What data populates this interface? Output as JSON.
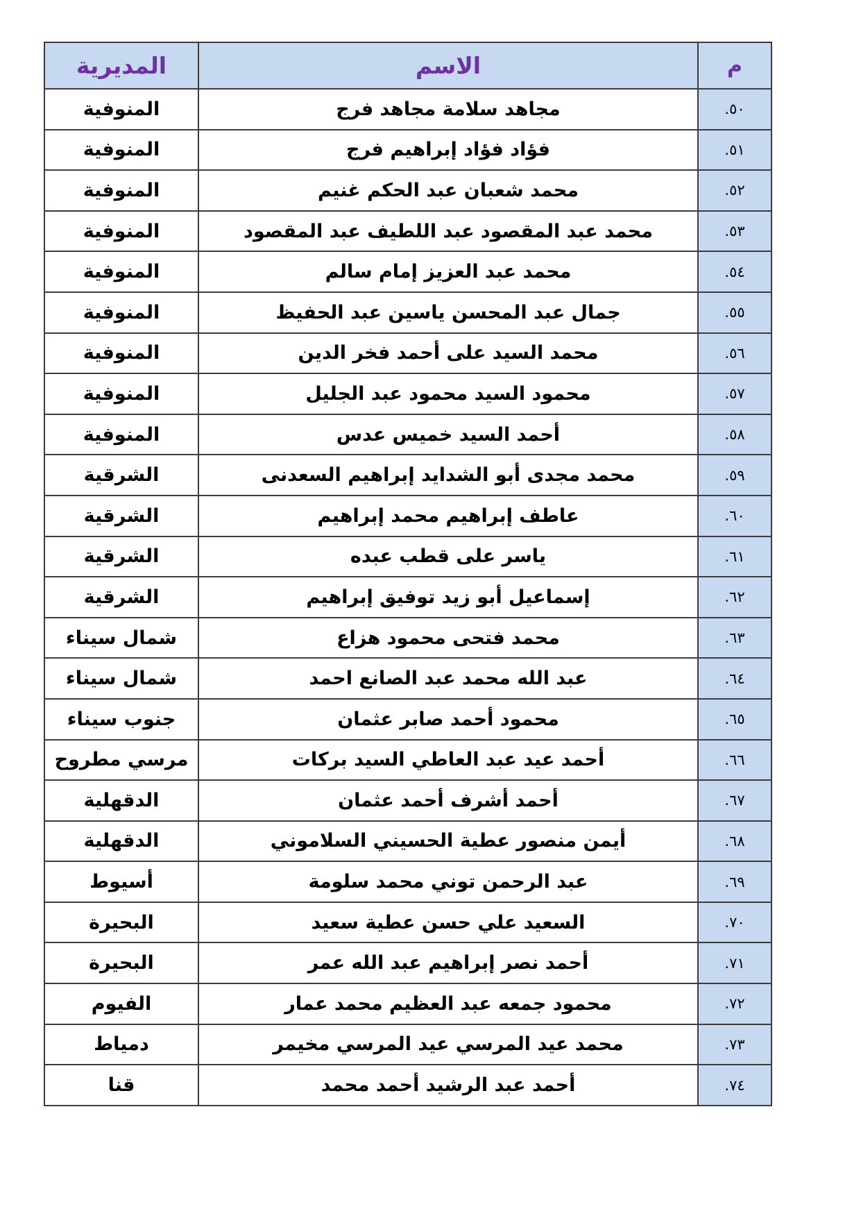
{
  "colors": {
    "header_bg": "#C6D9F1",
    "header_text": "#7030A0",
    "number_cell_bg": "#C6D9F1",
    "border": "#3c3c3c",
    "body_text": "#000000"
  },
  "table": {
    "headers": {
      "number": "م",
      "name": "الاسم",
      "directorate": "المديرية"
    },
    "rows": [
      {
        "number": "٥٠.",
        "name": "مجاهد سلامة مجاهد فرج",
        "directorate": "المنوفية"
      },
      {
        "number": "٥١.",
        "name": "فؤاد فؤاد إبراهيم فرج",
        "directorate": "المنوفية"
      },
      {
        "number": "٥٢.",
        "name": "محمد شعبان عبد الحكم غنيم",
        "directorate": "المنوفية"
      },
      {
        "number": "٥٣.",
        "name": "محمد عبد المقصود عبد اللطيف عبد المقصود",
        "directorate": "المنوفية"
      },
      {
        "number": "٥٤.",
        "name": "محمد عبد العزيز إمام سالم",
        "directorate": "المنوفية"
      },
      {
        "number": "٥٥.",
        "name": "جمال عبد المحسن ياسين عبد الحفيظ",
        "directorate": "المنوفية"
      },
      {
        "number": "٥٦.",
        "name": "محمد السيد على أحمد فخر الدين",
        "directorate": "المنوفية"
      },
      {
        "number": "٥٧.",
        "name": "محمود السيد محمود عبد الجليل",
        "directorate": "المنوفية"
      },
      {
        "number": "٥٨.",
        "name": "أحمد السيد خميس عدس",
        "directorate": "المنوفية"
      },
      {
        "number": "٥٩.",
        "name": "محمد مجدى أبو الشدايد إبراهيم السعدنى",
        "directorate": "الشرقية"
      },
      {
        "number": "٦٠.",
        "name": "عاطف إبراهيم محمد إبراهيم",
        "directorate": "الشرقية"
      },
      {
        "number": "٦١.",
        "name": "ياسر على قطب عبده",
        "directorate": "الشرقية"
      },
      {
        "number": "٦٢.",
        "name": "إسماعيل أبو زيد توفيق إبراهيم",
        "directorate": "الشرقية"
      },
      {
        "number": "٦٣.",
        "name": "محمد فتحى محمود هزاع",
        "directorate": "شمال سيناء"
      },
      {
        "number": "٦٤.",
        "name": "عبد الله محمد عبد الصانع احمد",
        "directorate": "شمال سيناء"
      },
      {
        "number": "٦٥.",
        "name": "محمود أحمد صابر عثمان",
        "directorate": "جنوب سيناء"
      },
      {
        "number": "٦٦.",
        "name": "أحمد عيد عبد العاطي السيد بركات",
        "directorate": "مرسي مطروح"
      },
      {
        "number": "٦٧.",
        "name": "أحمد أشرف أحمد عثمان",
        "directorate": "الدقهلية"
      },
      {
        "number": "٦٨.",
        "name": "أيمن منصور عطية الحسيني السلاموني",
        "directorate": "الدقهلية"
      },
      {
        "number": "٦٩.",
        "name": "عبد الرحمن توني محمد سلومة",
        "directorate": "أسيوط"
      },
      {
        "number": "٧٠.",
        "name": "السعيد علي حسن عطية سعيد",
        "directorate": "البحيرة"
      },
      {
        "number": "٧١.",
        "name": "أحمد نصر إبراهيم عبد الله عمر",
        "directorate": "البحيرة"
      },
      {
        "number": "٧٢.",
        "name": "محمود جمعه عبد العظيم محمد عمار",
        "directorate": "الفيوم"
      },
      {
        "number": "٧٣.",
        "name": "محمد عيد المرسي عيد المرسي مخيمر",
        "directorate": "دمياط"
      },
      {
        "number": "٧٤.",
        "name": "أحمد عبد الرشيد أحمد محمد",
        "directorate": "قنا"
      }
    ]
  }
}
